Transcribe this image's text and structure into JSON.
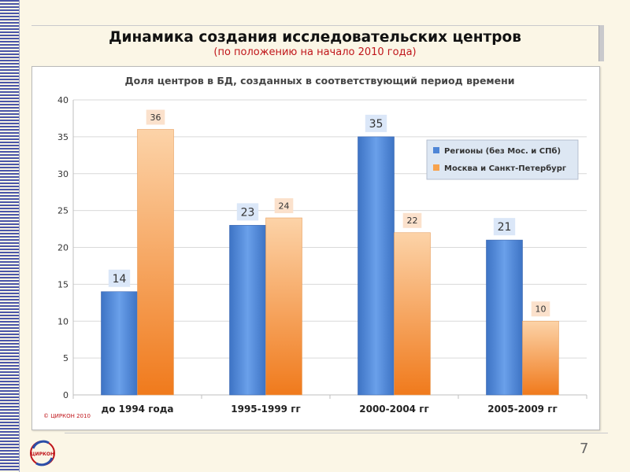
{
  "slide": {
    "title": "Динамика создания исследовательских центров",
    "subtitle": "(по положению на начало 2010 года)",
    "page_number": "7",
    "logo_text": "ЦИРКОН",
    "copyright": "© ЦИРКОН 2010"
  },
  "colors": {
    "series_1": "#4f86d6",
    "series_2": "#f7a34e",
    "title_red": "#c0161b"
  },
  "chart_data": {
    "type": "bar",
    "title": "Доля центров в БД, созданных в соответствующий период времени",
    "categories": [
      "до 1994 года",
      "1995-1999 гг",
      "2000-2004 гг",
      "2005-2009 гг"
    ],
    "series": [
      {
        "name": "Регионы (без Мос. и СПб)",
        "values": [
          14,
          23,
          35,
          21
        ],
        "color": "#4f86d6"
      },
      {
        "name": "Москва и Санкт-Петербург",
        "values": [
          36,
          24,
          22,
          10
        ],
        "color": "#f7a34e"
      }
    ],
    "ylim": [
      0,
      40
    ],
    "yticks": [
      "0",
      "5",
      "10",
      "15",
      "20",
      "25",
      "30",
      "35",
      "40"
    ],
    "grid": true,
    "legend_position": "right"
  }
}
